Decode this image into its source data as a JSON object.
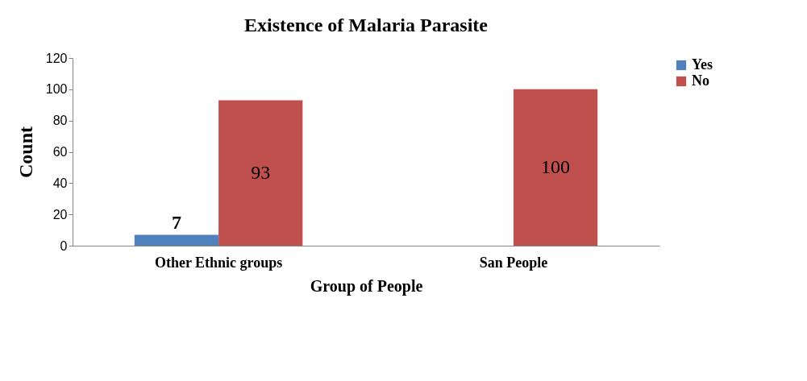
{
  "chart_data": {
    "type": "bar",
    "title": "Existence of Malaria Parasite",
    "xlabel": "Group of People",
    "ylabel": "Count",
    "categories": [
      "Other Ethnic groups",
      "San People"
    ],
    "series": [
      {
        "name": "Yes",
        "color": "#4f81bd",
        "values": [
          7,
          0
        ],
        "value_labels": [
          "7",
          null
        ]
      },
      {
        "name": "No",
        "color": "#c0504d",
        "values": [
          93,
          100
        ],
        "value_labels": [
          "93",
          "100"
        ]
      }
    ],
    "ylim": [
      0,
      120
    ],
    "yticks": [
      0,
      20,
      40,
      60,
      80,
      100,
      120
    ],
    "grid": false,
    "legend": "right"
  }
}
